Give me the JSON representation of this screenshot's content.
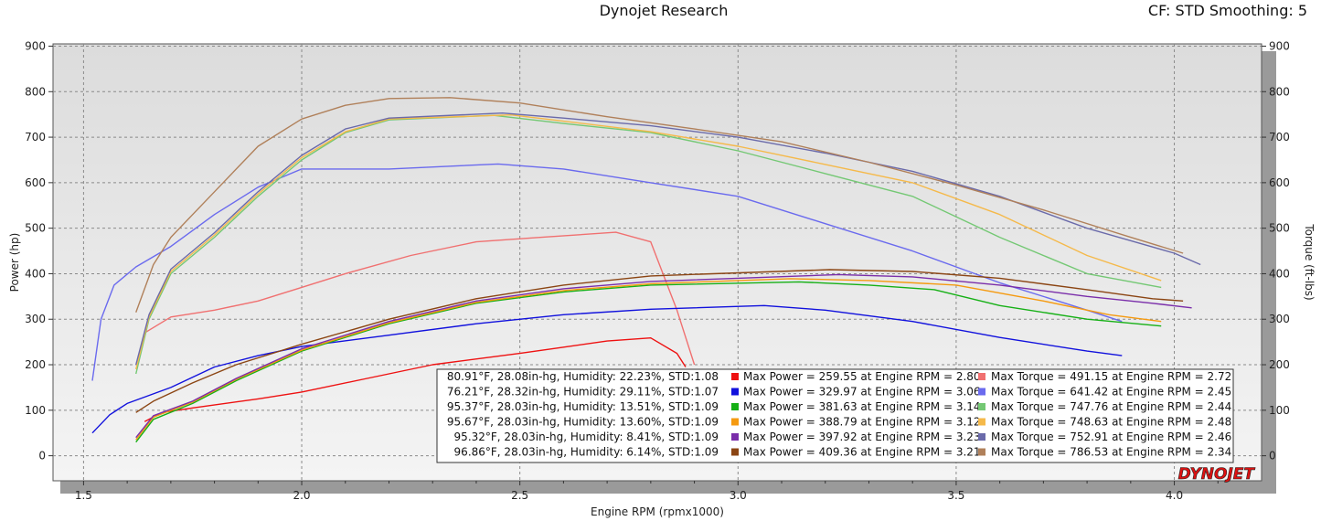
{
  "header": {
    "title": "Dynojet Research",
    "correction": "CF: STD Smoothing: 5"
  },
  "logo": "DYNOJET",
  "chart_data": {
    "type": "line",
    "title": "Dynojet Research",
    "xlabel": "Engine RPM (rpmx1000)",
    "ylabel_left": "Power (hp)",
    "ylabel_right": "Torque (ft-lbs)",
    "xlim": [
      1.43,
      4.2
    ],
    "ylim": [
      -55,
      905
    ],
    "x_ticks": [
      1.5,
      2.0,
      2.5,
      3.0,
      3.5,
      4.0
    ],
    "x_tick_labels": [
      "1.5",
      "2.0",
      "2.5",
      "3.0",
      "3.5",
      "4.0"
    ],
    "y_ticks": [
      0,
      100,
      200,
      300,
      400,
      500,
      600,
      700,
      800,
      900
    ],
    "y_tick_labels": [
      "0",
      "100",
      "200",
      "300",
      "400",
      "500",
      "600",
      "700",
      "800",
      "900"
    ],
    "grid": true,
    "legend_position": "bottom-right",
    "runs": [
      {
        "conditions": "80.91°F, 28.08in-hg, Humidity: 22.23%, STD:1.08",
        "power_label": "Max Power = 259.55 at Engine RPM = 2.80",
        "torque_label": "Max Torque = 491.15 at Engine RPM = 2.72",
        "power_color": "#ee1111",
        "torque_color": "#f07070",
        "power": [
          [
            1.64,
            75
          ],
          [
            1.68,
            95
          ],
          [
            1.75,
            105
          ],
          [
            1.9,
            125
          ],
          [
            2.0,
            140
          ],
          [
            2.15,
            170
          ],
          [
            2.3,
            200
          ],
          [
            2.5,
            225
          ],
          [
            2.7,
            252
          ],
          [
            2.8,
            259
          ],
          [
            2.86,
            225
          ],
          [
            2.88,
            195
          ]
        ],
        "torque": [
          [
            1.64,
            270
          ],
          [
            1.7,
            305
          ],
          [
            1.8,
            320
          ],
          [
            1.9,
            340
          ],
          [
            2.0,
            370
          ],
          [
            2.1,
            400
          ],
          [
            2.25,
            440
          ],
          [
            2.4,
            470
          ],
          [
            2.55,
            480
          ],
          [
            2.72,
            491
          ],
          [
            2.8,
            470
          ],
          [
            2.86,
            320
          ],
          [
            2.9,
            200
          ]
        ]
      },
      {
        "conditions": "76.21°F, 28.32in-hg, Humidity: 29.11%, STD:1.07",
        "power_label": "Max Power = 329.97 at Engine RPM = 3.06",
        "torque_label": "Max Torque = 641.42 at Engine RPM = 2.45",
        "power_color": "#1111dd",
        "torque_color": "#6a6aee",
        "power": [
          [
            1.52,
            50
          ],
          [
            1.56,
            90
          ],
          [
            1.6,
            115
          ],
          [
            1.7,
            150
          ],
          [
            1.8,
            195
          ],
          [
            1.9,
            220
          ],
          [
            2.0,
            240
          ],
          [
            2.2,
            265
          ],
          [
            2.4,
            290
          ],
          [
            2.6,
            310
          ],
          [
            2.8,
            322
          ],
          [
            3.06,
            330
          ],
          [
            3.2,
            320
          ],
          [
            3.4,
            295
          ],
          [
            3.6,
            260
          ],
          [
            3.8,
            230
          ],
          [
            3.88,
            220
          ]
        ],
        "torque": [
          [
            1.52,
            165
          ],
          [
            1.54,
            300
          ],
          [
            1.57,
            375
          ],
          [
            1.62,
            415
          ],
          [
            1.7,
            460
          ],
          [
            1.8,
            530
          ],
          [
            1.9,
            590
          ],
          [
            2.0,
            630
          ],
          [
            2.2,
            630
          ],
          [
            2.45,
            641
          ],
          [
            2.6,
            630
          ],
          [
            2.8,
            600
          ],
          [
            3.0,
            570
          ],
          [
            3.2,
            510
          ],
          [
            3.4,
            450
          ],
          [
            3.6,
            380
          ],
          [
            3.8,
            320
          ],
          [
            3.88,
            295
          ]
        ]
      },
      {
        "conditions": "95.37°F, 28.03in-hg, Humidity: 13.51%, STD:1.09",
        "power_label": "Max Power = 381.63 at Engine RPM = 3.14",
        "torque_label": "Max Torque = 747.76 at Engine RPM = 2.44",
        "power_color": "#16b016",
        "torque_color": "#74c874",
        "power": [
          [
            1.62,
            30
          ],
          [
            1.66,
            80
          ],
          [
            1.75,
            115
          ],
          [
            1.85,
            165
          ],
          [
            2.0,
            230
          ],
          [
            2.2,
            290
          ],
          [
            2.4,
            335
          ],
          [
            2.6,
            360
          ],
          [
            2.8,
            375
          ],
          [
            3.14,
            382
          ],
          [
            3.3,
            375
          ],
          [
            3.45,
            365
          ],
          [
            3.6,
            330
          ],
          [
            3.8,
            300
          ],
          [
            3.97,
            285
          ]
        ],
        "torque": [
          [
            1.62,
            180
          ],
          [
            1.65,
            300
          ],
          [
            1.7,
            400
          ],
          [
            1.8,
            480
          ],
          [
            1.9,
            570
          ],
          [
            2.0,
            650
          ],
          [
            2.1,
            710
          ],
          [
            2.2,
            738
          ],
          [
            2.44,
            748
          ],
          [
            2.6,
            730
          ],
          [
            2.8,
            710
          ],
          [
            3.0,
            670
          ],
          [
            3.2,
            620
          ],
          [
            3.4,
            570
          ],
          [
            3.6,
            480
          ],
          [
            3.8,
            400
          ],
          [
            3.97,
            370
          ]
        ]
      },
      {
        "conditions": "95.67°F, 28.03in-hg, Humidity: 13.60%, STD:1.09",
        "power_label": "Max Power = 388.79 at Engine RPM = 3.12",
        "torque_label": "Max Torque = 748.63 at Engine RPM = 2.48",
        "power_color": "#f59a10",
        "torque_color": "#f5b94a",
        "power": [
          [
            1.62,
            35
          ],
          [
            1.66,
            85
          ],
          [
            1.75,
            118
          ],
          [
            1.85,
            168
          ],
          [
            2.0,
            232
          ],
          [
            2.2,
            292
          ],
          [
            2.4,
            337
          ],
          [
            2.6,
            363
          ],
          [
            2.8,
            378
          ],
          [
            3.12,
            389
          ],
          [
            3.3,
            385
          ],
          [
            3.5,
            375
          ],
          [
            3.7,
            340
          ],
          [
            3.85,
            310
          ],
          [
            3.97,
            295
          ]
        ],
        "torque": [
          [
            1.62,
            190
          ],
          [
            1.65,
            305
          ],
          [
            1.7,
            405
          ],
          [
            1.8,
            485
          ],
          [
            1.9,
            575
          ],
          [
            2.0,
            655
          ],
          [
            2.1,
            712
          ],
          [
            2.2,
            740
          ],
          [
            2.48,
            749
          ],
          [
            2.6,
            735
          ],
          [
            2.8,
            712
          ],
          [
            3.0,
            680
          ],
          [
            3.2,
            640
          ],
          [
            3.4,
            600
          ],
          [
            3.6,
            530
          ],
          [
            3.8,
            440
          ],
          [
            3.97,
            385
          ]
        ]
      },
      {
        "conditions": "95.32°F, 28.03in-hg, Humidity: 8.41%, STD:1.09",
        "power_label": "Max Power = 397.92 at Engine RPM = 3.23",
        "torque_label": "Max Torque = 752.91 at Engine RPM = 2.46",
        "power_color": "#7a2eaa",
        "torque_color": "#6a6aaa",
        "power": [
          [
            1.62,
            40
          ],
          [
            1.66,
            88
          ],
          [
            1.75,
            120
          ],
          [
            1.85,
            170
          ],
          [
            2.0,
            235
          ],
          [
            2.2,
            295
          ],
          [
            2.4,
            340
          ],
          [
            2.6,
            367
          ],
          [
            2.8,
            383
          ],
          [
            3.23,
            398
          ],
          [
            3.4,
            393
          ],
          [
            3.6,
            375
          ],
          [
            3.8,
            350
          ],
          [
            3.95,
            335
          ],
          [
            4.04,
            325
          ]
        ],
        "torque": [
          [
            1.62,
            200
          ],
          [
            1.65,
            310
          ],
          [
            1.7,
            410
          ],
          [
            1.8,
            490
          ],
          [
            1.9,
            580
          ],
          [
            2.0,
            660
          ],
          [
            2.1,
            718
          ],
          [
            2.2,
            742
          ],
          [
            2.46,
            753
          ],
          [
            2.6,
            742
          ],
          [
            2.8,
            725
          ],
          [
            3.0,
            700
          ],
          [
            3.2,
            665
          ],
          [
            3.4,
            625
          ],
          [
            3.6,
            570
          ],
          [
            3.8,
            500
          ],
          [
            4.0,
            445
          ],
          [
            4.06,
            420
          ]
        ]
      },
      {
        "conditions": "96.86°F, 28.03in-hg, Humidity: 6.14%, STD:1.09",
        "power_label": "Max Power = 409.36 at Engine RPM = 3.21",
        "torque_label": "Max Torque = 786.53 at Engine RPM = 2.34",
        "power_color": "#8b4513",
        "torque_color": "#b0805a",
        "power": [
          [
            1.62,
            95
          ],
          [
            1.66,
            120
          ],
          [
            1.75,
            160
          ],
          [
            1.85,
            200
          ],
          [
            2.0,
            245
          ],
          [
            2.2,
            300
          ],
          [
            2.4,
            345
          ],
          [
            2.6,
            375
          ],
          [
            2.8,
            395
          ],
          [
            3.21,
            409
          ],
          [
            3.4,
            405
          ],
          [
            3.6,
            390
          ],
          [
            3.8,
            365
          ],
          [
            3.95,
            345
          ],
          [
            4.02,
            340
          ]
        ],
        "torque": [
          [
            1.62,
            315
          ],
          [
            1.66,
            420
          ],
          [
            1.7,
            480
          ],
          [
            1.8,
            580
          ],
          [
            1.9,
            680
          ],
          [
            2.0,
            740
          ],
          [
            2.1,
            770
          ],
          [
            2.2,
            785
          ],
          [
            2.34,
            787
          ],
          [
            2.5,
            775
          ],
          [
            2.7,
            745
          ],
          [
            2.9,
            718
          ],
          [
            3.1,
            690
          ],
          [
            3.3,
            645
          ],
          [
            3.5,
            595
          ],
          [
            3.7,
            540
          ],
          [
            3.9,
            480
          ],
          [
            4.02,
            445
          ]
        ]
      }
    ]
  }
}
